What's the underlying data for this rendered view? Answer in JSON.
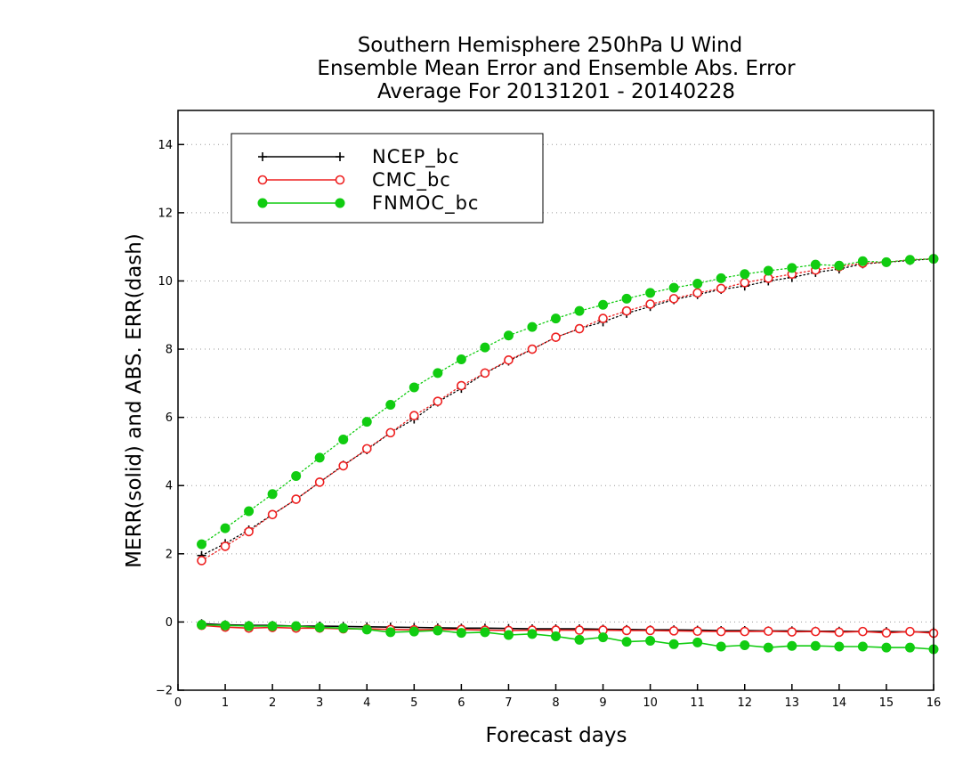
{
  "chart_data": {
    "type": "line",
    "title": [
      "Southern Hemisphere 250hPa U Wind",
      "Ensemble Mean Error and Ensemble Abs. Error",
      "Average For 20131201 - 20140228"
    ],
    "xlabel": "Forecast days",
    "ylabel": "MERR(solid) and ABS. ERR(dash)",
    "xlim": [
      0,
      16
    ],
    "ylim": [
      -2,
      15
    ],
    "xticks": [
      0,
      1,
      2,
      3,
      4,
      5,
      6,
      7,
      8,
      9,
      10,
      11,
      12,
      13,
      14,
      15,
      16
    ],
    "yticks": [
      -2,
      0,
      2,
      4,
      6,
      8,
      10,
      12,
      14
    ],
    "grid": true,
    "legend_position": "top-left",
    "x": [
      0.5,
      1.0,
      1.5,
      2.0,
      2.5,
      3.0,
      3.5,
      4.0,
      4.5,
      5.0,
      5.5,
      6.0,
      6.5,
      7.0,
      7.5,
      8.0,
      8.5,
      9.0,
      9.5,
      10.0,
      10.5,
      11.0,
      11.5,
      12.0,
      12.5,
      13.0,
      13.5,
      14.0,
      14.5,
      15.0,
      15.5,
      16.0
    ],
    "series": [
      {
        "name": "NCEP_bc",
        "color": "#000000",
        "marker": "plus",
        "abs_err": [
          1.95,
          2.3,
          2.7,
          3.15,
          3.6,
          4.1,
          4.6,
          5.05,
          5.55,
          5.95,
          6.45,
          6.85,
          7.3,
          7.65,
          8.0,
          8.35,
          8.6,
          8.8,
          9.05,
          9.25,
          9.45,
          9.6,
          9.75,
          9.85,
          10.0,
          10.1,
          10.25,
          10.35,
          10.5,
          10.55,
          10.6,
          10.65
        ],
        "mean_err": [
          -0.05,
          -0.08,
          -0.1,
          -0.1,
          -0.12,
          -0.12,
          -0.13,
          -0.14,
          -0.15,
          -0.16,
          -0.17,
          -0.18,
          -0.18,
          -0.19,
          -0.2,
          -0.2,
          -0.2,
          -0.21,
          -0.22,
          -0.23,
          -0.23,
          -0.24,
          -0.25,
          -0.25,
          -0.26,
          -0.26,
          -0.27,
          -0.27,
          -0.28,
          -0.28,
          -0.29,
          -0.29
        ]
      },
      {
        "name": "CMC_bc",
        "color": "#ee2020",
        "marker": "open-circle",
        "abs_err": [
          1.8,
          2.22,
          2.65,
          3.15,
          3.6,
          4.1,
          4.58,
          5.08,
          5.55,
          6.05,
          6.47,
          6.93,
          7.3,
          7.68,
          8.0,
          8.35,
          8.6,
          8.9,
          9.12,
          9.32,
          9.48,
          9.65,
          9.78,
          9.95,
          10.08,
          10.2,
          10.32,
          10.42,
          10.52,
          10.55,
          10.62,
          10.65
        ],
        "mean_err": [
          -0.1,
          -0.15,
          -0.18,
          -0.16,
          -0.18,
          -0.18,
          -0.2,
          -0.2,
          -0.22,
          -0.23,
          -0.22,
          -0.22,
          -0.24,
          -0.25,
          -0.24,
          -0.24,
          -0.24,
          -0.24,
          -0.25,
          -0.25,
          -0.26,
          -0.27,
          -0.28,
          -0.28,
          -0.27,
          -0.29,
          -0.28,
          -0.3,
          -0.28,
          -0.32,
          -0.28,
          -0.33
        ]
      },
      {
        "name": "FNMOC_bc",
        "color": "#11cc11",
        "marker": "filled-circle",
        "abs_err": [
          2.28,
          2.75,
          3.25,
          3.75,
          4.28,
          4.82,
          5.35,
          5.87,
          6.37,
          6.88,
          7.3,
          7.7,
          8.05,
          8.4,
          8.65,
          8.9,
          9.12,
          9.3,
          9.48,
          9.65,
          9.8,
          9.92,
          10.08,
          10.2,
          10.3,
          10.38,
          10.48,
          10.45,
          10.58,
          10.55,
          10.62,
          10.65
        ],
        "mean_err": [
          -0.08,
          -0.1,
          -0.12,
          -0.12,
          -0.12,
          -0.16,
          -0.18,
          -0.22,
          -0.3,
          -0.28,
          -0.25,
          -0.32,
          -0.3,
          -0.38,
          -0.35,
          -0.42,
          -0.52,
          -0.45,
          -0.58,
          -0.55,
          -0.65,
          -0.6,
          -0.72,
          -0.68,
          -0.75,
          -0.7,
          -0.7,
          -0.72,
          -0.72,
          -0.75,
          -0.75,
          -0.8
        ]
      }
    ]
  }
}
